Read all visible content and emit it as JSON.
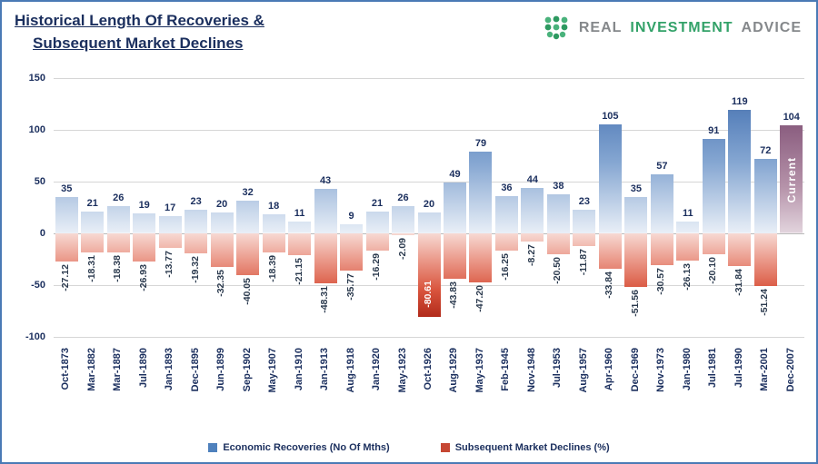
{
  "header": {
    "title_line1": "Historical Length Of Recoveries &",
    "title_line2": "Subsequent Market Declines",
    "logo": {
      "word1": "REAL",
      "word2": "INVESTMENT",
      "word3": "ADVICE"
    }
  },
  "chart_data": {
    "type": "bar",
    "title": "Historical Length Of Recoveries & Subsequent Market Declines",
    "xlabel": "",
    "ylabel": "",
    "ylim": [
      -100,
      150
    ],
    "yticks": [
      150,
      100,
      50,
      0,
      -50,
      -100
    ],
    "grid": true,
    "legend_position": "bottom",
    "categories": [
      "Oct-1873",
      "Mar-1882",
      "Mar-1887",
      "Jul-1890",
      "Jan-1893",
      "Dec-1895",
      "Jun-1899",
      "Sep-1902",
      "May-1907",
      "Jan-1910",
      "Jan-1913",
      "Aug-1918",
      "Jan-1920",
      "May-1923",
      "Oct-1926",
      "Aug-1929",
      "May-1937",
      "Feb-1945",
      "Nov-1948",
      "Jul-1953",
      "Aug-1957",
      "Apr-1960",
      "Dec-1969",
      "Nov-1973",
      "Jan-1980",
      "Jul-1981",
      "Jul-1990",
      "Mar-2001",
      "Dec-2007"
    ],
    "series": [
      {
        "name": "Economic Recoveries (No Of Mths)",
        "color": "#4f81bd",
        "values": [
          35,
          21,
          26,
          19,
          17,
          23,
          20,
          32,
          18,
          11,
          43,
          9,
          21,
          26,
          20,
          49,
          79,
          36,
          44,
          38,
          23,
          105,
          35,
          57,
          11,
          91,
          119,
          72,
          104
        ]
      },
      {
        "name": "Subsequent Market Declines (%)",
        "color": "#c64733",
        "values": [
          -27.12,
          -18.31,
          -18.38,
          -26.93,
          -13.77,
          -19.32,
          -32.35,
          -40.05,
          -18.39,
          -21.15,
          -48.31,
          -35.77,
          -16.29,
          -2.09,
          -80.61,
          -43.83,
          -47.2,
          -16.25,
          -8.27,
          -20.5,
          -11.87,
          -33.84,
          -51.56,
          -30.57,
          -26.13,
          -20.1,
          -31.84,
          -51.24,
          null
        ]
      }
    ],
    "current_index": 28,
    "current_label": "Current",
    "current_color": "#8f6384"
  }
}
